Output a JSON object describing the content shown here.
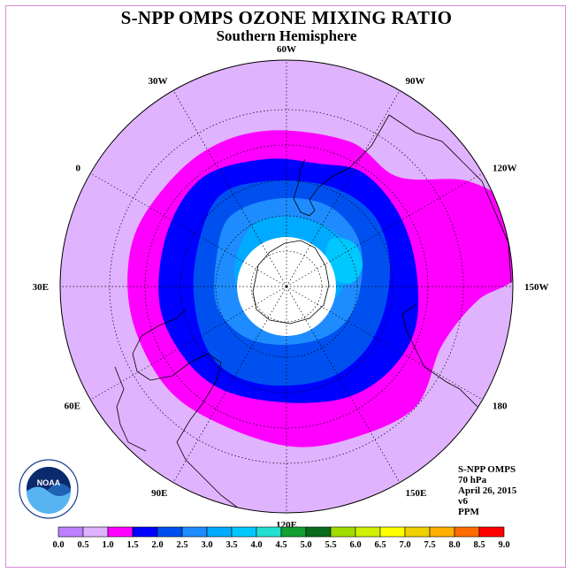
{
  "title": "S-NPP OMPS OZONE MIXING RATIO",
  "subtitle": "Southern Hemisphere",
  "longitude_labels": [
    {
      "text": "90W",
      "lon": -90
    },
    {
      "text": "60W",
      "lon": -60
    },
    {
      "text": "30W",
      "lon": -30
    },
    {
      "text": "0",
      "lon": 0
    },
    {
      "text": "30E",
      "lon": 30
    },
    {
      "text": "60E",
      "lon": 60
    },
    {
      "text": "90E",
      "lon": 90
    },
    {
      "text": "120E",
      "lon": 120
    },
    {
      "text": "150E",
      "lon": 150
    },
    {
      "text": "180",
      "lon": 180
    },
    {
      "text": "150W",
      "lon": -150
    },
    {
      "text": "120W",
      "lon": -120
    }
  ],
  "info": {
    "instrument": "S-NPP OMPS",
    "level": "70 hPa",
    "date": "April 26, 2015",
    "version": "v6",
    "units": "PPM"
  },
  "logo": {
    "text": "NOAA"
  },
  "colorbar": {
    "labels": [
      "0.0",
      "0.5",
      "1.0",
      "1.5",
      "2.0",
      "2.5",
      "3.0",
      "3.5",
      "4.0",
      "4.5",
      "5.0",
      "5.5",
      "6.0",
      "6.5",
      "7.0",
      "7.5",
      "8.0",
      "8.5",
      "9.0"
    ],
    "colors": [
      "#bf80ff",
      "#e0b3ff",
      "#ff00ff",
      "#0000ff",
      "#0050f0",
      "#1e8cff",
      "#00aaff",
      "#00c8ff",
      "#22e0d0",
      "#12a030",
      "#0a6a1e",
      "#a0dc00",
      "#d0f000",
      "#ffff00",
      "#f0d000",
      "#ffb000",
      "#ff6a00",
      "#ff0000",
      "#8c4a2a"
    ]
  },
  "field_colors": {
    "background": "#e0b3ff",
    "band_1_0_1_5": "#ff00ff",
    "band_1_5_2_0": "#0000ff",
    "band_2_0_2_5": "#0050f0",
    "band_2_5_3_0": "#1e8cff",
    "band_3_0_3_5": "#00aaff",
    "band_3_5_4_0": "#00c8ff",
    "no_data_polar": "#ffffff"
  }
}
